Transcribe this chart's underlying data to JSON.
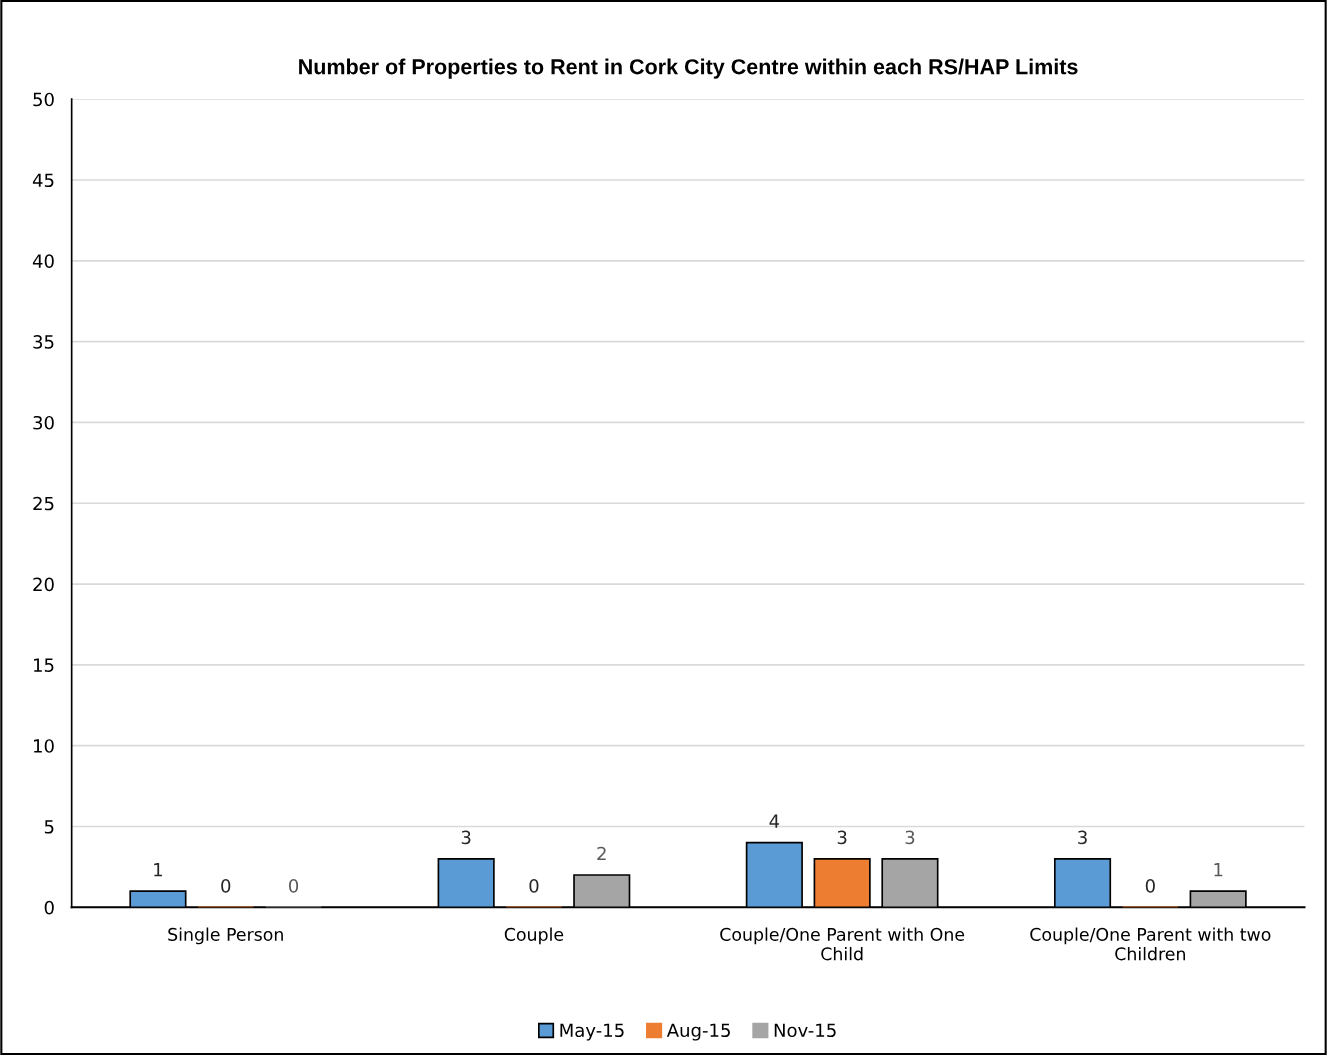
{
  "chart_data": {
    "type": "bar",
    "title": "Number of Properties to Rent in Cork City Centre within each RS/HAP Limits",
    "categories": [
      "Single Person",
      "Couple",
      "Couple/One Parent with One Child",
      "Couple/One Parent with two Children"
    ],
    "series": [
      {
        "name": "May-15",
        "color": "#5b9bd5",
        "values": [
          1,
          3,
          4,
          3
        ]
      },
      {
        "name": "Aug-15",
        "color": "#ed7d31",
        "values": [
          0,
          0,
          3,
          0
        ]
      },
      {
        "name": "Nov-15",
        "color": "#a5a5a5",
        "values": [
          0,
          2,
          3,
          1
        ]
      }
    ],
    "ylim": [
      0,
      50
    ],
    "yticks": [
      0,
      5,
      10,
      15,
      20,
      25,
      30,
      35,
      40,
      45,
      50
    ],
    "grid": "y",
    "legend": "bottom",
    "data_labels": true
  }
}
